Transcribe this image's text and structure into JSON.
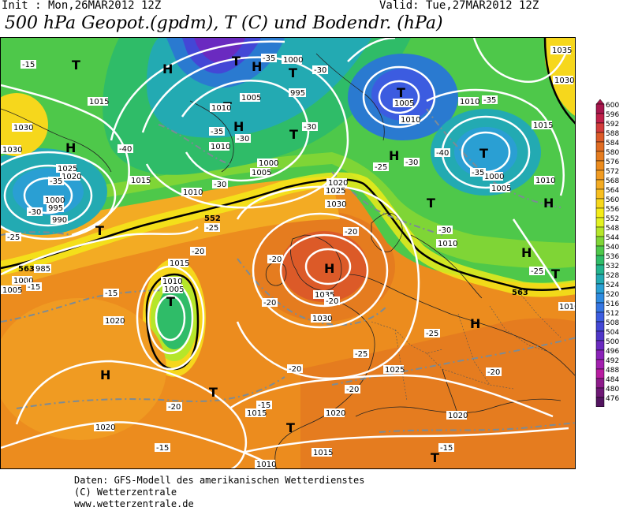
{
  "header": {
    "init": "Init : Mon,26MAR2012 12Z",
    "valid": "Valid: Tue,27MAR2012 12Z",
    "title": "500 hPa Geopot.(gpdm), T (C) und Bodendr. (hPa)"
  },
  "legend": {
    "levels": [
      "600",
      "596",
      "592",
      "588",
      "584",
      "580",
      "576",
      "572",
      "568",
      "564",
      "560",
      "556",
      "552",
      "548",
      "544",
      "540",
      "536",
      "532",
      "528",
      "524",
      "520",
      "516",
      "512",
      "508",
      "504",
      "500",
      "496",
      "492",
      "488",
      "484",
      "480",
      "476"
    ],
    "colors": [
      "#a8174e",
      "#c0204a",
      "#d23b3b",
      "#dc5a28",
      "#e06c22",
      "#e57c1f",
      "#ec8c1e",
      "#f09b22",
      "#f3ab23",
      "#f7be1f",
      "#f6d71c",
      "#f4ec18",
      "#e2f222",
      "#b5e62a",
      "#7fd536",
      "#4ec84a",
      "#2fbc68",
      "#23b48e",
      "#23aab2",
      "#2aa0d3",
      "#2f8be0",
      "#3575e2",
      "#3c5ce0",
      "#4347d6",
      "#4f36c8",
      "#6a2ac0",
      "#8a22b8",
      "#a21fae",
      "#b71ca0",
      "#8d1b8a",
      "#6e1875",
      "#531460"
    ]
  },
  "map": {
    "high_pressure_label": "H",
    "low_pressure_label": "T",
    "isobar_labels": [
      "1035",
      "1030",
      "1025",
      "1020",
      "1015",
      "1010",
      "1005",
      "1000",
      "995",
      "990",
      "985"
    ],
    "temperature_labels": [
      "-40",
      "-35",
      "-30",
      "-25",
      "-20",
      "-15"
    ],
    "contour_552": "552",
    "contour_563": "563"
  },
  "footer": {
    "line1": "Daten: GFS-Modell des amerikanischen Wetterdienstes",
    "line2": "(C) Wetterzentrale",
    "line3": "www.wetterzentrale.de"
  }
}
